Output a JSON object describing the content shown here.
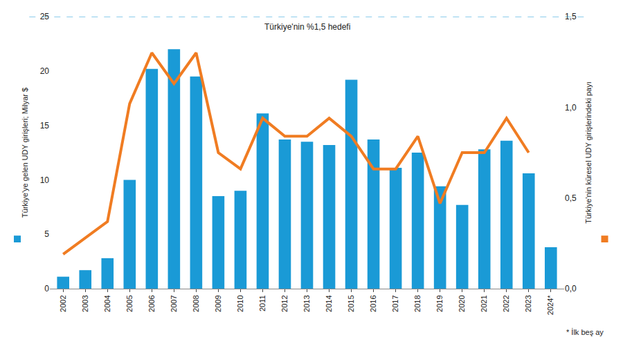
{
  "chart_data": {
    "type": "bar",
    "categories": [
      "2002",
      "2003",
      "2004",
      "2005",
      "2006",
      "2007",
      "2008",
      "2009",
      "2010",
      "2011",
      "2012",
      "2013",
      "2014",
      "2015",
      "2016",
      "2017",
      "2018",
      "2019",
      "2020",
      "2021",
      "2022",
      "2023",
      "2024*"
    ],
    "series": [
      {
        "type": "bar",
        "color": "#1a9ad6",
        "values": [
          1.1,
          1.7,
          2.8,
          10.0,
          20.2,
          22.0,
          19.5,
          8.5,
          9.0,
          16.1,
          13.7,
          13.5,
          13.2,
          19.2,
          13.7,
          11.1,
          12.5,
          9.4,
          7.7,
          12.8,
          13.6,
          10.6,
          3.8
        ]
      },
      {
        "type": "line",
        "color": "#f07c22",
        "axis": "y2",
        "values": [
          0.19,
          0.28,
          0.37,
          1.02,
          1.3,
          1.13,
          1.3,
          0.75,
          0.66,
          0.94,
          0.84,
          0.84,
          0.94,
          0.84,
          0.66,
          0.66,
          0.84,
          0.47,
          0.75,
          0.75,
          0.94,
          0.75,
          null
        ]
      }
    ],
    "y_label": "Türkiye'ye gelen UDY girişleri; Milyar $",
    "y2_label": "Türkiye'nin küresel UDY girişlerindeki payı",
    "ylim": [
      0,
      25
    ],
    "yticks": [
      0,
      5,
      10,
      15,
      20,
      25
    ],
    "y2lim": [
      0,
      1.5
    ],
    "y2ticks": [
      {
        "value": 0,
        "label": "0,0"
      },
      {
        "value": 0.5,
        "label": "0,5"
      },
      {
        "value": 1,
        "label": "1,0"
      },
      {
        "value": 1.5,
        "label": "1,5"
      }
    ],
    "annotations": [
      {
        "text": "Türkiye'nin %1,5 hedefi",
        "y": 1.5,
        "axis": "y2",
        "line_style": "dashed"
      },
      {
        "text": "* İlk beş ay"
      }
    ],
    "grid": false
  }
}
